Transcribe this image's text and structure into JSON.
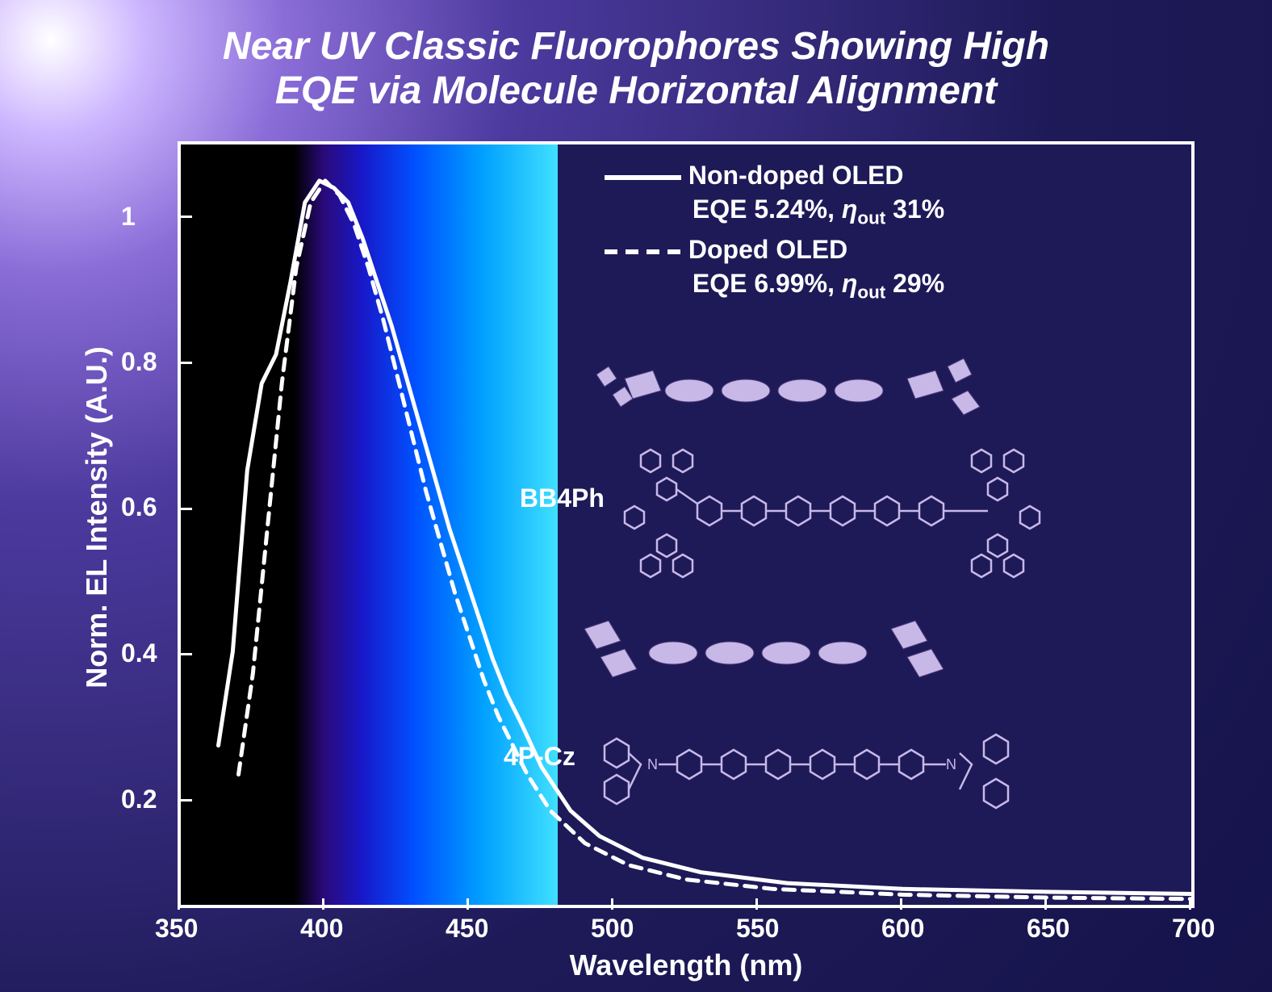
{
  "title_line1": "Near UV Classic Fluorophores Showing High",
  "title_line2": "EQE via Molecule Horizontal Alignment",
  "chart": {
    "type": "line",
    "xlabel": "Wavelength (nm)",
    "ylabel": "Norm. EL Intensity (A.U.)",
    "xlim": [
      350,
      700
    ],
    "ylim": [
      0,
      1.05
    ],
    "xticks": [
      350,
      400,
      450,
      500,
      550,
      600,
      650,
      700
    ],
    "yticks": [
      0.2,
      0.4,
      0.6,
      0.8,
      1.0
    ],
    "frame_color": "#ffffff",
    "frame_width": 4,
    "background_color": "#1e1a58",
    "tick_fontsize": 32,
    "label_fontsize": 36,
    "tick_color": "#ffffff",
    "spectrum_band": {
      "x_start": 350,
      "x_end": 480,
      "gradient_stops": [
        {
          "pct": 0,
          "color": "#000000"
        },
        {
          "pct": 30,
          "color": "#000000"
        },
        {
          "pct": 38,
          "color": "#2a0a7a"
        },
        {
          "pct": 48,
          "color": "#1818c8"
        },
        {
          "pct": 62,
          "color": "#0050ff"
        },
        {
          "pct": 80,
          "color": "#00a0ff"
        },
        {
          "pct": 100,
          "color": "#40e0ff"
        }
      ]
    },
    "series": [
      {
        "name": "Non-doped OLED",
        "line_style": "solid",
        "line_width": 5,
        "line_color": "#ffffff",
        "x": [
          363,
          368,
          373,
          378,
          383,
          388,
          393,
          398,
          403,
          408,
          413,
          418,
          423,
          428,
          433,
          438,
          443,
          448,
          453,
          458,
          463,
          468,
          475,
          485,
          495,
          510,
          530,
          560,
          600,
          650,
          700
        ],
        "y": [
          0.22,
          0.35,
          0.6,
          0.72,
          0.76,
          0.86,
          0.97,
          1.0,
          0.99,
          0.97,
          0.92,
          0.86,
          0.8,
          0.73,
          0.66,
          0.59,
          0.52,
          0.46,
          0.4,
          0.34,
          0.29,
          0.25,
          0.19,
          0.13,
          0.095,
          0.065,
          0.045,
          0.03,
          0.022,
          0.018,
          0.015
        ]
      },
      {
        "name": "Doped OLED",
        "line_style": "dashed",
        "dash_pattern": "14 10",
        "line_width": 5,
        "line_color": "#ffffff",
        "x": [
          370,
          375,
          380,
          385,
          390,
          395,
          400,
          405,
          410,
          415,
          420,
          425,
          430,
          435,
          440,
          445,
          450,
          455,
          460,
          465,
          470,
          478,
          490,
          505,
          525,
          555,
          600,
          650,
          700
        ],
        "y": [
          0.18,
          0.32,
          0.52,
          0.72,
          0.88,
          0.97,
          1.0,
          0.98,
          0.94,
          0.88,
          0.81,
          0.73,
          0.65,
          0.57,
          0.5,
          0.43,
          0.37,
          0.31,
          0.26,
          0.22,
          0.18,
          0.13,
          0.085,
          0.055,
          0.035,
          0.022,
          0.014,
          0.01,
          0.008
        ]
      }
    ],
    "legend": {
      "entries": [
        {
          "style": "solid",
          "label1": "Non-doped OLED",
          "label2_prefix": "EQE 5.24%, ",
          "eta": "η",
          "eta_sub": "out",
          "eta_val": " 31%"
        },
        {
          "style": "dashed",
          "label1": "Doped OLED",
          "label2_prefix": "EQE 6.99%, ",
          "eta": "η",
          "eta_sub": "out",
          "eta_val": " 29%"
        }
      ],
      "text_color": "#ffffff",
      "fontsize": 32
    }
  },
  "molecules": [
    {
      "label": "BB4Ph",
      "structure_color": "#c8b8e8"
    },
    {
      "label": "4P-Cz",
      "structure_color": "#c8b8e8"
    }
  ],
  "page_bg_gradient": {
    "center": "4% 4%",
    "stops": [
      {
        "pct": 0,
        "color": "#ffffff"
      },
      {
        "pct": 6,
        "color": "#cdb6ff"
      },
      {
        "pct": 15,
        "color": "#8b6dd8"
      },
      {
        "pct": 30,
        "color": "#4c3a9e"
      },
      {
        "pct": 65,
        "color": "#1e1a58"
      },
      {
        "pct": 100,
        "color": "#15134a"
      }
    ]
  }
}
